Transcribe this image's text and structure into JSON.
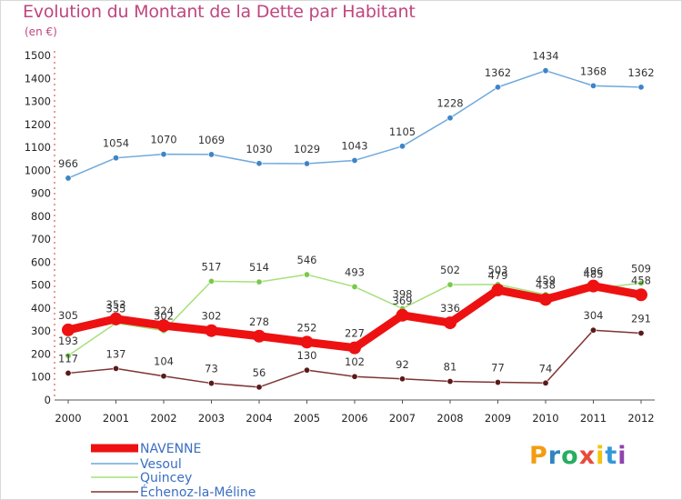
{
  "header": {
    "title": "Evolution du Montant de la Dette par Habitant",
    "subtitle": "(en €)"
  },
  "brand": {
    "text": "Proxiti"
  },
  "chart_data": {
    "type": "line",
    "title": "Evolution du Montant de la Dette par Habitant",
    "subtitle": "(en €)",
    "x": [
      "2000",
      "2001",
      "2002",
      "2003",
      "2004",
      "2005",
      "2006",
      "2007",
      "2008",
      "2009",
      "2010",
      "2011",
      "2012"
    ],
    "ylim": [
      0,
      1500
    ],
    "yticks": [
      0,
      100,
      200,
      300,
      400,
      500,
      600,
      700,
      800,
      900,
      1000,
      1100,
      1200,
      1300,
      1400,
      1500
    ],
    "grid": false,
    "legend_position": "bottom-left",
    "series": [
      {
        "name": "NAVENNE",
        "color": "#ee1111",
        "values": [
          305,
          353,
          324,
          302,
          278,
          252,
          227,
          369,
          336,
          479,
          438,
          496,
          458
        ],
        "labels": [
          "305",
          "353",
          "324",
          "302",
          "278",
          "252",
          "227",
          "369",
          "336",
          "479",
          "438",
          "496",
          "458"
        ]
      },
      {
        "name": "Vesoul",
        "color": "#6fa8dc",
        "marker": "#3d85c6",
        "values": [
          966,
          1054,
          1070,
          1069,
          1030,
          1029,
          1043,
          1105,
          1228,
          1362,
          1434,
          1368,
          1362
        ],
        "labels": [
          "966",
          "1054",
          "1070",
          "1069",
          "1030",
          "1029",
          "1043",
          "1105",
          "1228",
          "1362",
          "1434",
          "1368",
          "1362"
        ]
      },
      {
        "name": "Quincey",
        "color": "#a6e07a",
        "marker": "#79c94b",
        "values": [
          193,
          335,
          302,
          517,
          514,
          546,
          493,
          398,
          502,
          503,
          459,
          485,
          509
        ],
        "labels": [
          "193",
          "335",
          "302",
          "517",
          "514",
          "546",
          "493",
          "398",
          "502",
          "503",
          "459",
          "485",
          "509"
        ]
      },
      {
        "name": "Échenoz-la-Méline",
        "color": "#7f3333",
        "marker": "#5a1a1a",
        "values": [
          117,
          137,
          104,
          73,
          56,
          130,
          102,
          92,
          81,
          77,
          74,
          304,
          291
        ],
        "labels": [
          "117",
          "137",
          "104",
          "73",
          "56",
          "130",
          "102",
          "92",
          "81",
          "77",
          "74",
          "304",
          "291"
        ]
      }
    ]
  }
}
